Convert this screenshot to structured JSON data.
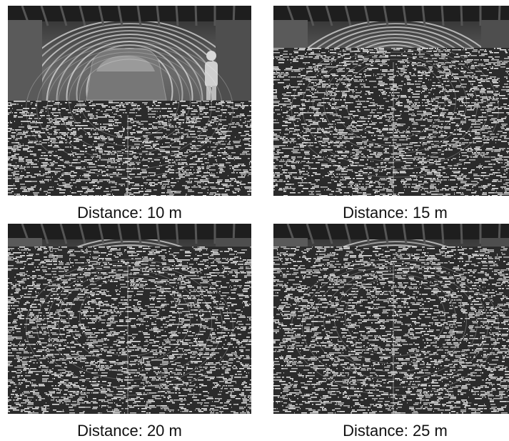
{
  "panels": [
    {
      "caption": "Distance: 10 m",
      "noise_start": 0.5
    },
    {
      "caption": "Distance: 15 m",
      "noise_start": 0.22
    },
    {
      "caption": "Distance: 20 m",
      "noise_start": 0.12
    },
    {
      "caption": "Distance: 25 m",
      "noise_start": 0.12
    }
  ]
}
